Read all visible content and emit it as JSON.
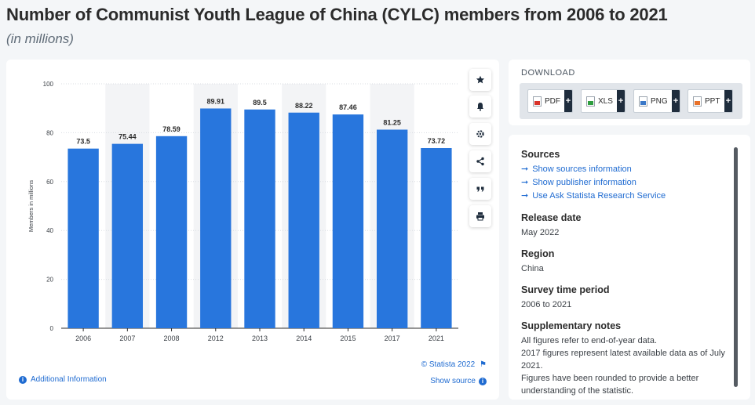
{
  "header": {
    "title": "Number of Communist Youth League of China (CYLC) members from 2006 to 2021",
    "subtitle": "(in millions)"
  },
  "chart_data": {
    "type": "bar",
    "categories": [
      "2006",
      "2007",
      "2008",
      "2012",
      "2013",
      "2014",
      "2015",
      "2017",
      "2021"
    ],
    "values": [
      73.5,
      75.44,
      78.59,
      89.91,
      89.5,
      88.22,
      87.46,
      81.25,
      73.72
    ],
    "value_labels": [
      "73.5",
      "75.44",
      "78.59",
      "89.91",
      "89.5",
      "88.22",
      "87.46",
      "81.25",
      "73.72"
    ],
    "title": "",
    "xlabel": "",
    "ylabel": "Members in millions",
    "ylim": [
      0,
      100
    ],
    "yticks": [
      0,
      20,
      40,
      60,
      80,
      100
    ],
    "ytick_labels": [
      "0",
      "20",
      "40",
      "60",
      "80",
      "100"
    ],
    "grid": true,
    "bar_color": "#2876dd"
  },
  "chart_footer": {
    "credit": "© Statista 2022",
    "show_source": "Show source",
    "additional_info": "Additional Information"
  },
  "toolbar": {
    "icons": [
      "star-icon",
      "bell-icon",
      "gear-icon",
      "share-icon",
      "quote-icon",
      "print-icon"
    ]
  },
  "download": {
    "title": "DOWNLOAD",
    "buttons": [
      {
        "label": "PDF",
        "color": "#d9342b"
      },
      {
        "label": "XLS",
        "color": "#2e9e3f"
      },
      {
        "label": "PNG",
        "color": "#3a78c8"
      },
      {
        "label": "PPT",
        "color": "#e8722a"
      }
    ],
    "plus": "+"
  },
  "info": {
    "sources_heading": "Sources",
    "source_links": [
      "Show sources information",
      "Show publisher information",
      "Use Ask Statista Research Service"
    ],
    "release_heading": "Release date",
    "release_value": "May 2022",
    "region_heading": "Region",
    "region_value": "China",
    "survey_heading": "Survey time period",
    "survey_value": "2006 to 2021",
    "notes_heading": "Supplementary notes",
    "notes": [
      "All figures refer to end-of-year data.",
      "2017 figures represent latest available data as of July 2021.",
      "Figures have been rounded to provide a better understanding of the statistic."
    ]
  },
  "colors": {
    "accent": "#1f6bd1",
    "bar": "#2876dd",
    "dark": "#1f2d3d"
  }
}
